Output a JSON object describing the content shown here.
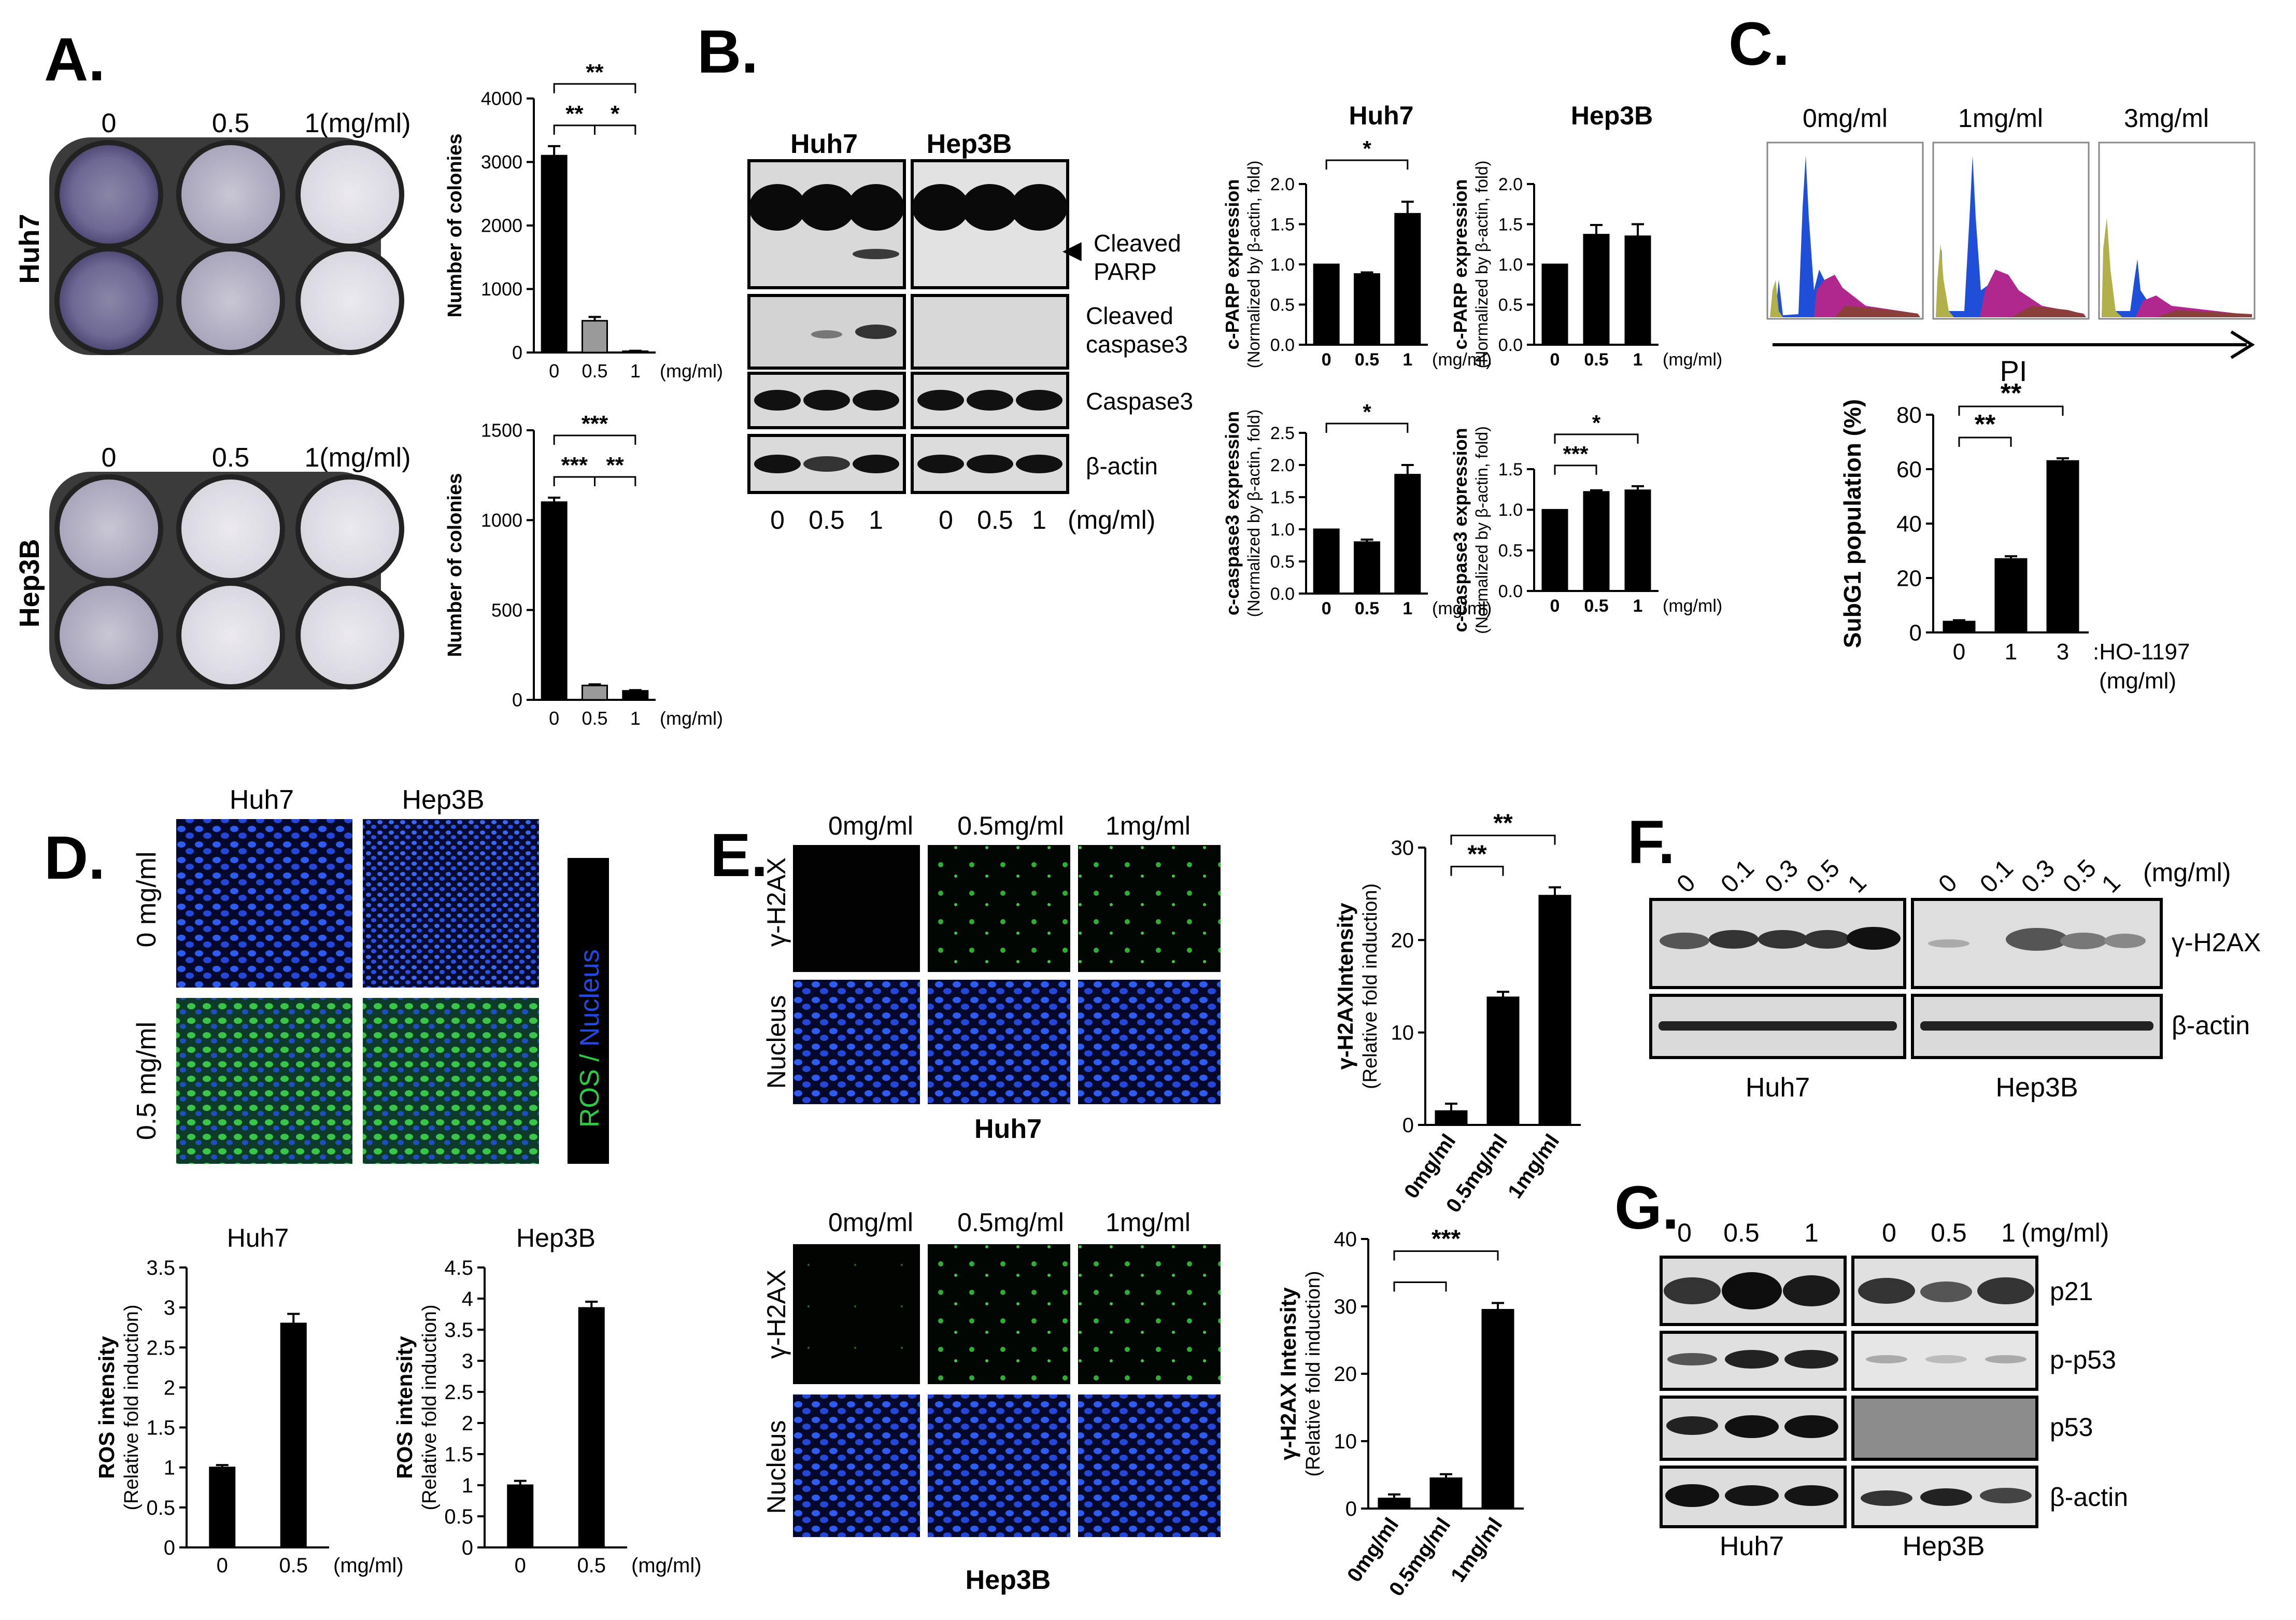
{
  "figure": {
    "panel_letters": [
      "A.",
      "B.",
      "C.",
      "D.",
      "E.",
      "F.",
      "G."
    ]
  },
  "panel_a": {
    "doses": [
      "0",
      "0.5",
      "1(mg/ml)"
    ],
    "rows": [
      "Huh7",
      "Hep3B"
    ],
    "unit": "(mg/ml)"
  },
  "panel_b": {
    "blot_groups": [
      "Huh7",
      "Hep3B"
    ],
    "blot_labels": [
      "Cleaved PARP",
      "Cleaved caspase3",
      "Caspase3",
      "β-actin"
    ],
    "arrow_label": "Cleaved PARP",
    "blot_x_labels": [
      "0",
      "0.5",
      "1",
      "0",
      "0.5",
      "1"
    ],
    "blot_unit": "(mg/ml)",
    "col_titles": [
      "Huh7",
      "Hep3B"
    ]
  },
  "panel_c": {
    "histogram_titles": [
      "0mg/ml",
      "1mg/ml",
      "3mg/ml"
    ],
    "axis_arrow_label": "PI"
  },
  "panel_d": {
    "column_titles": [
      "Huh7",
      "Hep3B"
    ],
    "row_labels": [
      "0 mg/ml",
      "0.5 mg/ml"
    ],
    "stain_label_ros": "ROS / ",
    "stain_label_nucleus": "Nucleus"
  },
  "panel_e": {
    "dose_titles": [
      "0mg/ml",
      "0.5mg/ml",
      "1mg/ml"
    ],
    "row_labels": [
      "γ-H2AX",
      "Nucleus"
    ],
    "cell_lines": [
      "Huh7",
      "Hep3B"
    ]
  },
  "panel_f": {
    "doses": [
      "0",
      "0.1",
      "0.3",
      "0.5",
      "1"
    ],
    "unit": "(mg/ml)",
    "band_labels": [
      "γ-H2AX",
      "β-actin"
    ],
    "cell_lines": [
      "Huh7",
      "Hep3B"
    ]
  },
  "panel_g": {
    "doses": [
      "0",
      "0.5",
      "1",
      "0",
      "0.5",
      "1"
    ],
    "unit": "(mg/ml)",
    "band_labels": [
      "p21",
      "p-p53",
      "p53",
      "β-actin"
    ],
    "cell_lines": [
      "Huh7",
      "Hep3B"
    ]
  },
  "colors": {
    "bar_black": "#000000",
    "bar_gray": "#9a9a9a",
    "flow_blue": "#1f4fd8",
    "flow_magenta": "#b0288e",
    "flow_olive": "#b2b04a",
    "flow_brown": "#8a3f3a",
    "ros_green": "#27c43a",
    "nucleus_blue": "#1a3fd6"
  },
  "chart_data": [
    {
      "id": "A-Huh7",
      "type": "bar",
      "categories": [
        "0",
        "0.5",
        "1"
      ],
      "values": [
        3100,
        500,
        20
      ],
      "errors": [
        150,
        60,
        8
      ],
      "ylim": [
        0,
        4000
      ],
      "yticks": [
        0,
        1000,
        2000,
        3000,
        4000
      ],
      "ylabel": "Number of colonies",
      "unit": "(mg/ml)",
      "bar_colors": [
        "#000000",
        "#9a9a9a",
        "#000000"
      ],
      "sig": [
        {
          "from": 0,
          "to": 1,
          "label": "**"
        },
        {
          "from": 0,
          "to": 2,
          "label": "**"
        },
        {
          "from": 1,
          "to": 2,
          "label": "*"
        }
      ]
    },
    {
      "id": "A-Hep3B",
      "type": "bar",
      "categories": [
        "0",
        "0.5",
        "1"
      ],
      "values": [
        1100,
        80,
        50
      ],
      "errors": [
        25,
        6,
        4
      ],
      "ylim": [
        0,
        1500
      ],
      "yticks": [
        0,
        500,
        1000,
        1500
      ],
      "ylabel": "Number of colonies",
      "unit": "(mg/ml)",
      "bar_colors": [
        "#000000",
        "#9a9a9a",
        "#000000"
      ],
      "sig": [
        {
          "from": 0,
          "to": 1,
          "label": "***"
        },
        {
          "from": 0,
          "to": 2,
          "label": "***"
        },
        {
          "from": 1,
          "to": 2,
          "label": "**"
        }
      ]
    },
    {
      "id": "B-Huh7-cPARP",
      "type": "bar",
      "categories": [
        "0",
        "0.5",
        "1"
      ],
      "values": [
        1.0,
        0.88,
        1.63
      ],
      "errors": [
        0,
        0.02,
        0.15
      ],
      "ylim": [
        0,
        2.0
      ],
      "yticks": [
        0,
        0.5,
        1.0,
        1.5,
        2.0
      ],
      "ytick_labels": [
        "0.0",
        "0.5",
        "1.0",
        "1.5",
        "2.0"
      ],
      "ylabel": "c-PARP expression",
      "ylabel2": "(Normalized by β-actin, fold)",
      "unit": "(mg/ml)",
      "sig": [
        {
          "from": 0,
          "to": 2,
          "label": "*"
        }
      ]
    },
    {
      "id": "B-Hep3B-cPARP",
      "type": "bar",
      "categories": [
        "0",
        "0.5",
        "1"
      ],
      "values": [
        1.0,
        1.37,
        1.35
      ],
      "errors": [
        0,
        0.12,
        0.15
      ],
      "ylim": [
        0,
        2.0
      ],
      "yticks": [
        0,
        0.5,
        1.0,
        1.5,
        2.0
      ],
      "ytick_labels": [
        "0.0",
        "0.5",
        "1.0",
        "1.5",
        "2.0"
      ],
      "ylabel": "c-PARP expression",
      "ylabel2": "(Normalized by β-actin, fold)",
      "unit": "(mg/ml)",
      "sig": []
    },
    {
      "id": "B-Huh7-ccasp3",
      "type": "bar",
      "categories": [
        "0",
        "0.5",
        "1"
      ],
      "values": [
        1.0,
        0.8,
        1.85
      ],
      "errors": [
        0,
        0.04,
        0.15
      ],
      "ylim": [
        0,
        2.5
      ],
      "yticks": [
        0,
        0.5,
        1.0,
        1.5,
        2.0,
        2.5
      ],
      "ytick_labels": [
        "0.0",
        "0.5",
        "1.0",
        "1.5",
        "2.0",
        "2.5"
      ],
      "ylabel": "c-caspase3 expression",
      "ylabel2": "(Normalized by β-actin, fold)",
      "unit": "(mg/ml)",
      "sig": [
        {
          "from": 0,
          "to": 2,
          "label": "*"
        }
      ]
    },
    {
      "id": "B-Hep3B-ccasp3",
      "type": "bar",
      "categories": [
        "0",
        "0.5",
        "1"
      ],
      "values": [
        1.0,
        1.22,
        1.24
      ],
      "errors": [
        0,
        0.02,
        0.05
      ],
      "ylim": [
        0,
        1.5
      ],
      "yticks": [
        0,
        0.5,
        1.0,
        1.5
      ],
      "ytick_labels": [
        "0.0",
        "0.5",
        "1.0",
        "1.5"
      ],
      "ylabel": "c-caspase3 expression",
      "ylabel2": "(Normalized by β-actin, fold)",
      "unit": "(mg/ml)",
      "sig": [
        {
          "from": 0,
          "to": 1,
          "label": "***"
        },
        {
          "from": 0,
          "to": 2,
          "label": "*"
        }
      ]
    },
    {
      "id": "C-subG1",
      "type": "bar",
      "categories": [
        "0",
        "1",
        "3"
      ],
      "values": [
        4,
        27,
        63
      ],
      "errors": [
        0.5,
        1,
        1
      ],
      "ylim": [
        0,
        80
      ],
      "yticks": [
        0,
        20,
        40,
        60,
        80
      ],
      "ylabel": "SubG1 population (%)",
      "unit": ":HO-1197",
      "unit2": "(mg/ml)",
      "sig": [
        {
          "from": 0,
          "to": 1,
          "label": "**"
        },
        {
          "from": 0,
          "to": 2,
          "label": "**"
        }
      ]
    },
    {
      "id": "D-Huh7",
      "type": "bar",
      "title": "Huh7",
      "categories": [
        "0",
        "0.5"
      ],
      "values": [
        1.0,
        2.8
      ],
      "errors": [
        0.03,
        0.12
      ],
      "ylim": [
        0,
        3.5
      ],
      "yticks": [
        0,
        0.5,
        1,
        1.5,
        2,
        2.5,
        3,
        3.5
      ],
      "ytick_labels": [
        "0",
        "0.5",
        "1",
        "1.5",
        "2",
        "2.5",
        "3",
        "3.5"
      ],
      "ylabel": "ROS intensity",
      "ylabel2": "(Relative fold induction)",
      "unit": "(mg/ml)",
      "sig": []
    },
    {
      "id": "D-Hep3B",
      "type": "bar",
      "title": "Hep3B",
      "categories": [
        "0",
        "0.5"
      ],
      "values": [
        1.0,
        3.85
      ],
      "errors": [
        0.07,
        0.1
      ],
      "ylim": [
        0,
        4.5
      ],
      "yticks": [
        0,
        0.5,
        1,
        1.5,
        2,
        2.5,
        3,
        3.5,
        4,
        4.5
      ],
      "ytick_labels": [
        "0",
        "0.5",
        "1",
        "1.5",
        "2",
        "2.5",
        "3",
        "3.5",
        "4",
        "4.5"
      ],
      "ylabel": "ROS intensity",
      "ylabel2": "(Relative fold induction)",
      "unit": "(mg/ml)",
      "sig": []
    },
    {
      "id": "E-Huh7",
      "type": "bar",
      "categories": [
        "0mg/ml",
        "0.5mg/ml",
        "1mg/ml"
      ],
      "values": [
        1.5,
        13.8,
        24.8
      ],
      "errors": [
        0.8,
        0.6,
        0.9
      ],
      "ylim": [
        0,
        30
      ],
      "yticks": [
        0,
        10,
        20,
        30
      ],
      "ylabel": "γ-H2AXIntensity",
      "ylabel2": "(Relative fold induction)",
      "sig": [
        {
          "from": 0,
          "to": 1,
          "label": "**"
        },
        {
          "from": 0,
          "to": 2,
          "label": "**"
        }
      ]
    },
    {
      "id": "E-Hep3B",
      "type": "bar",
      "categories": [
        "0mg/ml",
        "0.5mg/ml",
        "1mg/ml"
      ],
      "values": [
        1.5,
        4.5,
        29.5
      ],
      "errors": [
        0.6,
        0.6,
        1.0
      ],
      "ylim": [
        0,
        40
      ],
      "yticks": [
        0,
        10,
        20,
        30,
        40
      ],
      "ylabel": "γ-H2AX Intensity",
      "ylabel2": "(Relative fold induction)",
      "sig": [
        {
          "from": 0,
          "to": 1,
          "label": ""
        },
        {
          "from": 0,
          "to": 2,
          "label": "***"
        }
      ]
    }
  ]
}
